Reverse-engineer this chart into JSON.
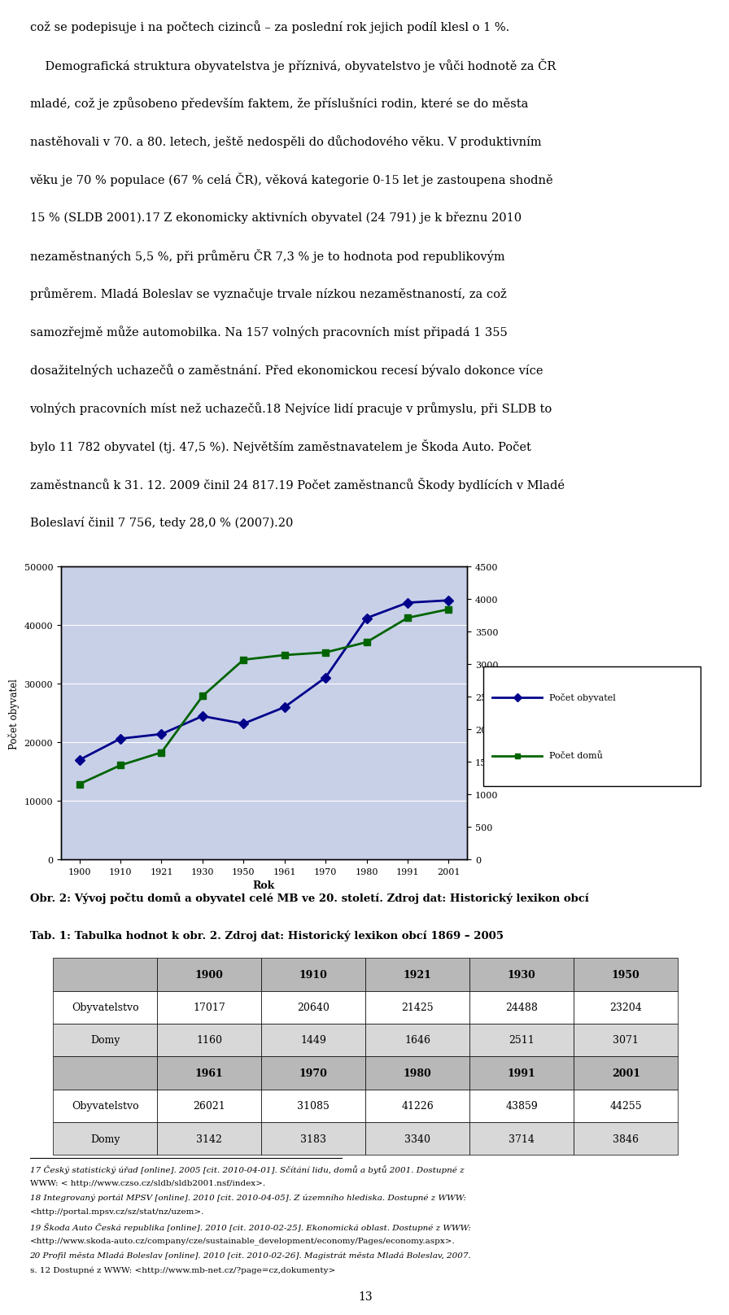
{
  "page_width": 9.6,
  "page_height": 16.36,
  "page_bg": "#ffffff",
  "chart": {
    "years": [
      1900,
      1910,
      1921,
      1930,
      1950,
      1961,
      1970,
      1980,
      1991,
      2001
    ],
    "obyvatele": [
      17017,
      20640,
      21425,
      24488,
      23204,
      26021,
      31085,
      41226,
      43859,
      44255
    ],
    "domy": [
      1160,
      1449,
      1646,
      2511,
      3071,
      3142,
      3183,
      3340,
      3714,
      3846
    ],
    "ylabel_left": "Počet obyvatel",
    "ylabel_right": "Počet domů",
    "xlabel": "Rok",
    "ylim_left": [
      0,
      50000
    ],
    "ylim_right": [
      0,
      4500
    ],
    "yticks_left": [
      0,
      10000,
      20000,
      30000,
      40000,
      50000
    ],
    "yticks_right": [
      0,
      500,
      1000,
      1500,
      2000,
      2500,
      3000,
      3500,
      4000,
      4500
    ],
    "color_obyvatele": "#00008B",
    "color_domy": "#006400",
    "bg_color": "#C8D0E8",
    "legend_obyvatele": "Počet obyvatel",
    "legend_domy": "Počet domů"
  },
  "chart_caption": "Obr. 2: Vývoj počtu domů a obyvatel celé MB ve 20. století. Zdroj dat: Historický lexikon obcí",
  "table_title": "Tab. 1: Tabulka hodnot k obr. 2. Zdroj dat: Historický lexikon obcí 1869 – 2005",
  "table_header1": [
    "",
    "1900",
    "1910",
    "1921",
    "1930",
    "1950"
  ],
  "table_row1": [
    "Obyvatelstvo",
    "17017",
    "20640",
    "21425",
    "24488",
    "23204"
  ],
  "table_row2": [
    "Domy",
    "1160",
    "1449",
    "1646",
    "2511",
    "3071"
  ],
  "table_header2": [
    "",
    "1961",
    "1970",
    "1980",
    "1991",
    "2001"
  ],
  "table_row3": [
    "Obyvatelstvo",
    "26021",
    "31085",
    "41226",
    "43859",
    "44255"
  ],
  "table_row4": [
    "Domy",
    "3142",
    "3183",
    "3340",
    "3714",
    "3846"
  ],
  "page_number": "13",
  "text_lines": [
    "což se podepisuje i na počtech cizinců – za poslední rok jejich podíl klesl o 1 %.",
    "    Demografická struktura obyvatelstva je příznivá, obyvatelstvo je vůči hodnotě za ČR",
    "mladé, což je způsobeno především faktem, že příslušníci rodin, které se do města",
    "nastěhovali v 70. a 80. letech, ještě nedospěli do důchodového věku. V produktivním",
    "věku je 70 % populace (67 % celá ČR), věková kategorie 0-15 let je zastoupena shodně",
    "15 % (SLDB 2001).17 Z ekonomicky aktivních obyvatel (24 791) je k březnu 2010",
    "nezaměstnaných 5,5 %, při průměru ČR 7,3 % je to hodnota pod republikovým",
    "průměrem. Mladá Boleslav se vyznačuje trvale nízkou nezaměstnaností, za což",
    "samozřejmě může automobilka. Na 157 volných pracovních míst připadá 1 355",
    "dosažitelných uchazečů o zaměstnání. Před ekonomickou recesí bývalo dokonce více",
    "volných pracovních míst než uchazečů.18 Nejvíce lidí pracuje v průmyslu, při SLDB to",
    "bylo 11 782 obyvatel (tj. 47,5 %). Největším zaměstnavatelem je Škoda Auto. Počet",
    "zaměstnanců k 31. 12. 2009 činil 24 817.19 Počet zaměstnanců Škody bydlících v Mladé",
    "Boleslaví činil 7 756, tedy 28,0 % (2007).20"
  ],
  "footnote_lines": [
    [
      "italic",
      "17 Český statistický úřad [online]. 2005 [cit. 2010-04-01]. Sčítání lidu, domů a bytů 2001. Dostupné z"
    ],
    [
      "normal",
      "WWW: < http://www.czso.cz/sldb/sldb2001.nsf/index>."
    ],
    [
      "italic",
      "18 Integrovaný portál MPSV [online]. 2010 [cit. 2010-04-05]. Z územního hlediska. Dostupné z WWW:"
    ],
    [
      "normal",
      "<http://portal.mpsv.cz/sz/stat/nz/uzem>."
    ],
    [
      "italic",
      "19 Škoda Auto Česká republika [online]. 2010 [cit. 2010-02-25]. Ekonomická oblast. Dostupné z WWW:"
    ],
    [
      "normal",
      "<http://www.skoda-auto.cz/company/cze/sustainable_development/economy/Pages/economy.aspx>."
    ],
    [
      "italic",
      "20 Profil města Mladá Boleslav [online]. 2010 [cit. 2010-02-26]. Magistrát města Mladá Boleslav, 2007."
    ],
    [
      "normal",
      "s. 12 Dostupné z WWW: <http://www.mb-net.cz/?page=cz,dokumenty>"
    ]
  ]
}
